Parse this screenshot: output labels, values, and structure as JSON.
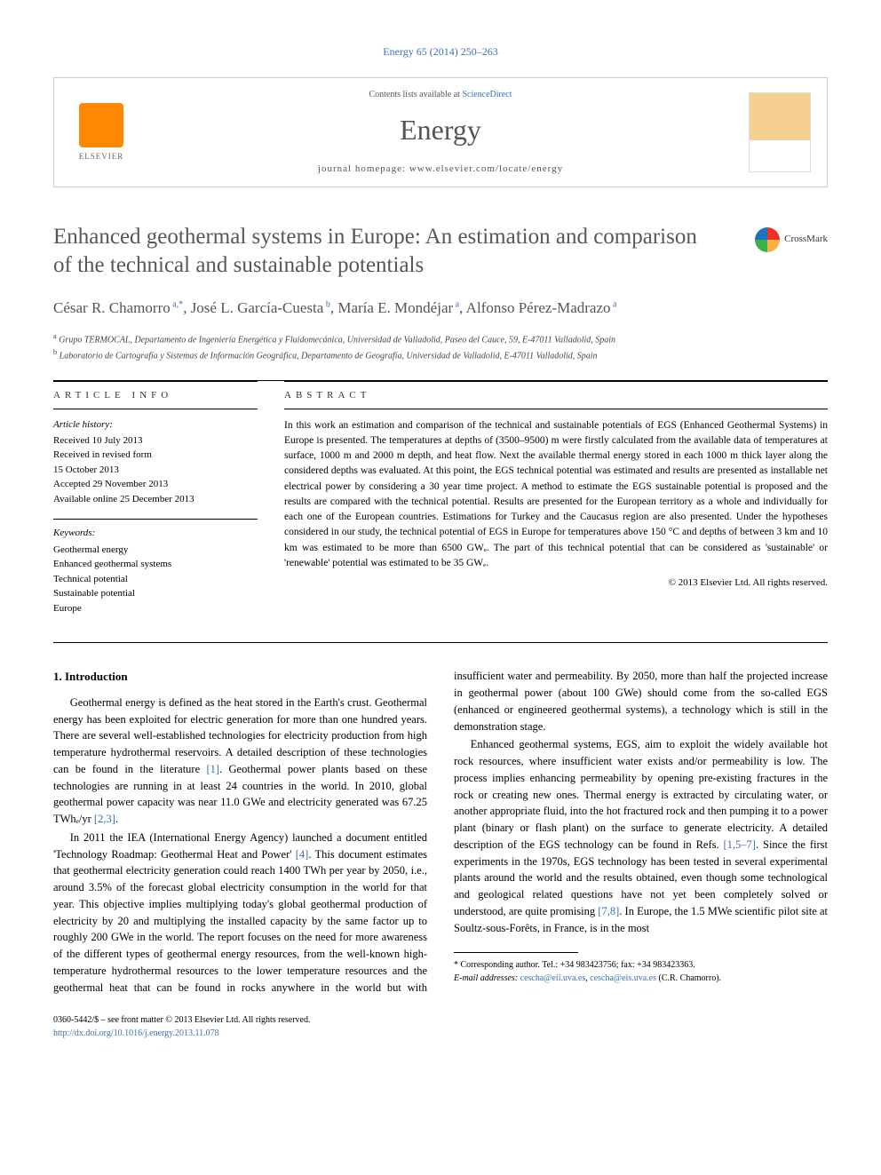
{
  "citation": "Energy 65 (2014) 250–263",
  "header": {
    "contents_prefix": "Contents lists available at ",
    "contents_link": "ScienceDirect",
    "journal": "Energy",
    "homepage_prefix": "journal homepage: ",
    "homepage_url": "www.elsevier.com/locate/energy",
    "publisher": "ELSEVIER"
  },
  "crossmark_label": "CrossMark",
  "title": "Enhanced geothermal systems in Europe: An estimation and comparison of the technical and sustainable potentials",
  "authors_html": "César R. Chamorro",
  "authors": [
    {
      "name": "César R. Chamorro",
      "affil": "a,*"
    },
    {
      "name": "José L. García-Cuesta",
      "affil": "b"
    },
    {
      "name": "María E. Mondéjar",
      "affil": "a"
    },
    {
      "name": "Alfonso Pérez-Madrazo",
      "affil": "a"
    }
  ],
  "affiliations": [
    {
      "sup": "a",
      "text": "Grupo TERMOCAL, Departamento de Ingeniería Energética y Fluidomecánica, Universidad de Valladolid, Paseo del Cauce, 59, E-47011 Valladolid, Spain"
    },
    {
      "sup": "b",
      "text": "Laboratorio de Cartografía y Sistemas de Información Geográfica, Departamento de Geografía, Universidad de Valladolid, E-47011 Valladolid, Spain"
    }
  ],
  "article_info_label": "ARTICLE INFO",
  "abstract_label": "ABSTRACT",
  "history_label": "Article history:",
  "history": [
    "Received 10 July 2013",
    "Received in revised form",
    "15 October 2013",
    "Accepted 29 November 2013",
    "Available online 25 December 2013"
  ],
  "keywords_label": "Keywords:",
  "keywords": [
    "Geothermal energy",
    "Enhanced geothermal systems",
    "Technical potential",
    "Sustainable potential",
    "Europe"
  ],
  "abstract": "In this work an estimation and comparison of the technical and sustainable potentials of EGS (Enhanced Geothermal Systems) in Europe is presented. The temperatures at depths of (3500–9500) m were firstly calculated from the available data of temperatures at surface, 1000 m and 2000 m depth, and heat flow. Next the available thermal energy stored in each 1000 m thick layer along the considered depths was evaluated. At this point, the EGS technical potential was estimated and results are presented as installable net electrical power by considering a 30 year time project. A method to estimate the EGS sustainable potential is proposed and the results are compared with the technical potential. Results are presented for the European territory as a whole and individually for each one of the European countries. Estimations for Turkey and the Caucasus region are also presented. Under the hypotheses considered in our study, the technical potential of EGS in Europe for temperatures above 150 °C and depths of between 3 km and 10 km was estimated to be more than 6500 GWₑ. The part of this technical potential that can be considered as 'sustainable' or 'renewable' potential was estimated to be 35 GWₑ.",
  "copyright": "© 2013 Elsevier Ltd. All rights reserved.",
  "section_heading": "1. Introduction",
  "body": {
    "p1a": "Geothermal energy is defined as the heat stored in the Earth's crust. Geothermal energy has been exploited for electric generation for more than one hundred years. There are several well-established technologies for electricity production from high temperature hydrothermal reservoirs. A detailed description of these technologies can be found in the literature ",
    "p1_ref1": "[1]",
    "p1b": ". Geothermal power plants based on these technologies are running in at least 24 countries in the world. In 2010, global geothermal power capacity was near 11.0 GWe and electricity generated was 67.25 TWhₑ/yr ",
    "p1_ref2": "[2,3]",
    "p1c": ".",
    "p2a": "In 2011 the IEA (International Energy Agency) launched a document entitled 'Technology Roadmap: Geothermal Heat and Power' ",
    "p2_ref1": "[4]",
    "p2b": ". This document estimates that geothermal electricity generation could reach 1400 TWh per year by 2050, i.e., around 3.5% of the forecast global electricity consumption in the world for that year. This objective implies multiplying today's global geothermal production of electricity by 20 and multiplying the installed capacity by the same factor up to roughly 200 GWe in the world. The report focuses on the need for more awareness of the different types of geothermal energy resources, from the well-known high-temperature hydrothermal resources to the lower temperature resources and the geothermal heat that can be found in rocks anywhere in the world but with insufficient water and permeability. By 2050, more than half the projected increase in geothermal power (about 100 GWe) should come from the so-called EGS (enhanced or engineered geothermal systems), a technology which is still in the demonstration stage.",
    "p3a": "Enhanced geothermal systems, EGS, aim to exploit the widely available hot rock resources, where insufficient water exists and/or permeability is low. The process implies enhancing permeability by opening pre-existing fractures in the rock or creating new ones. Thermal energy is extracted by circulating water, or another appropriate fluid, into the hot fractured rock and then pumping it to a power plant (binary or flash plant) on the surface to generate electricity. A detailed description of the EGS technology can be found in Refs. ",
    "p3_ref1": "[1,5–7]",
    "p3b": ". Since the first experiments in the 1970s, EGS technology has been tested in several experimental plants around the world and the results obtained, even though some technological and geological related questions have not yet been completely solved or understood, are quite promising ",
    "p3_ref2": "[7,8]",
    "p3c": ". In Europe, the 1.5 MWe scientific pilot site at Soultz-sous-Forêts, in France, is in the most"
  },
  "corresponding": {
    "label": "* Corresponding author. Tel.: +34 983423756; fax: +34 983423363.",
    "email_label": "E-mail addresses: ",
    "email1": "cescha@eii.uva.es",
    "email2": "cescha@eis.uva.es",
    "email_suffix": " (C.R. Chamorro)."
  },
  "bottom": {
    "issn": "0360-5442/$ – see front matter © 2013 Elsevier Ltd. All rights reserved.",
    "doi": "http://dx.doi.org/10.1016/j.energy.2013.11.078"
  }
}
